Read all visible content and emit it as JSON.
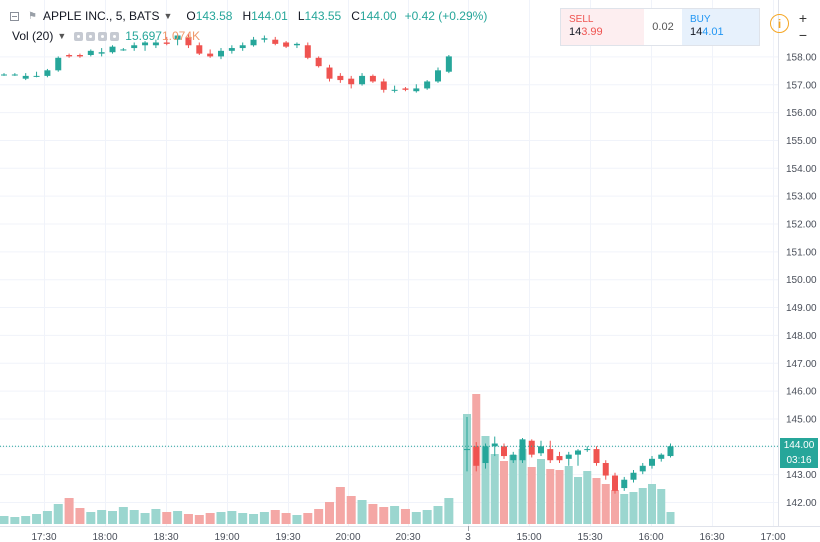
{
  "header": {
    "symbol": "APPLE INC., 5, BATS",
    "o_label": "O",
    "o_value": "143.58",
    "h_label": "H",
    "h_value": "144.01",
    "l_label": "L",
    "l_value": "143.55",
    "c_label": "C",
    "c_value": "144.00",
    "change": "+0.42 (+0.29%)"
  },
  "volume_legend": {
    "title": "Vol (20)",
    "value1": "15.697",
    "value2": "1.074K"
  },
  "trade_panel": {
    "sell_label": "SELL",
    "sell_price_prefix": "14",
    "sell_price_suffix": "3.99",
    "spread": "0.02",
    "buy_label": "BUY",
    "buy_price_prefix": "14",
    "buy_price_suffix": "4.01"
  },
  "controls": {
    "zoom_in": "+",
    "zoom_out": "−",
    "info": "i"
  },
  "price_tags": {
    "last_price": "144.00",
    "countdown": "03:16"
  },
  "colors": {
    "up": "#26a69a",
    "down": "#ef5350",
    "up_volume": "#9bd6cf",
    "down_volume": "#f4a7a5",
    "grid": "#f0f3fa",
    "last_price_line": "#26a69a"
  },
  "chart_data": {
    "type": "candlestick",
    "y_ticks": [
      142,
      143,
      144,
      145,
      146,
      147,
      148,
      149,
      150,
      151,
      152,
      153,
      154,
      155,
      156,
      157,
      158
    ],
    "y_tick_labels": [
      "142.00",
      "143.00",
      "144.00",
      "145.00",
      "146.00",
      "147.00",
      "148.00",
      "149.00",
      "150.00",
      "151.00",
      "152.00",
      "153.00",
      "154.00",
      "155.00",
      "156.00",
      "157.00",
      "158.00"
    ],
    "x_tick_labels": [
      "17:30",
      "18:00",
      "18:30",
      "19:00",
      "19:30",
      "20:00",
      "20:30",
      "3",
      "15:00",
      "15:30",
      "16:00",
      "16:30",
      "17:00"
    ],
    "ylim": [
      141.5,
      158.2
    ],
    "last_price": 144.0,
    "session1_candles": [
      {
        "o": 157.35,
        "h": 157.4,
        "l": 157.3,
        "c": 157.35
      },
      {
        "o": 157.35,
        "h": 157.4,
        "l": 157.3,
        "c": 157.35
      },
      {
        "o": 157.2,
        "h": 157.4,
        "l": 157.15,
        "c": 157.3
      },
      {
        "o": 157.3,
        "h": 157.45,
        "l": 157.25,
        "c": 157.3
      },
      {
        "o": 157.3,
        "h": 157.55,
        "l": 157.25,
        "c": 157.5
      },
      {
        "o": 157.5,
        "h": 158.0,
        "l": 157.45,
        "c": 157.95
      },
      {
        "o": 158.05,
        "h": 158.1,
        "l": 157.95,
        "c": 158.0
      },
      {
        "o": 158.05,
        "h": 158.1,
        "l": 157.95,
        "c": 158.0
      },
      {
        "o": 158.05,
        "h": 158.25,
        "l": 158.0,
        "c": 158.2
      },
      {
        "o": 158.1,
        "h": 158.3,
        "l": 158.0,
        "c": 158.15
      },
      {
        "o": 158.15,
        "h": 158.4,
        "l": 158.1,
        "c": 158.35
      },
      {
        "o": 158.25,
        "h": 158.3,
        "l": 158.2,
        "c": 158.25
      },
      {
        "o": 158.3,
        "h": 158.5,
        "l": 158.2,
        "c": 158.4
      },
      {
        "o": 158.4,
        "h": 158.55,
        "l": 158.2,
        "c": 158.5
      },
      {
        "o": 158.4,
        "h": 158.6,
        "l": 158.3,
        "c": 158.5
      },
      {
        "o": 158.5,
        "h": 158.7,
        "l": 158.4,
        "c": 158.45
      },
      {
        "o": 158.6,
        "h": 158.8,
        "l": 158.4,
        "c": 158.75
      },
      {
        "o": 158.7,
        "h": 158.8,
        "l": 158.3,
        "c": 158.4
      },
      {
        "o": 158.4,
        "h": 158.5,
        "l": 158.05,
        "c": 158.1
      },
      {
        "o": 158.1,
        "h": 158.25,
        "l": 157.95,
        "c": 158.0
      },
      {
        "o": 158.0,
        "h": 158.3,
        "l": 157.9,
        "c": 158.2
      },
      {
        "o": 158.2,
        "h": 158.4,
        "l": 158.1,
        "c": 158.3
      },
      {
        "o": 158.3,
        "h": 158.5,
        "l": 158.2,
        "c": 158.4
      },
      {
        "o": 158.4,
        "h": 158.7,
        "l": 158.35,
        "c": 158.6
      },
      {
        "o": 158.6,
        "h": 158.75,
        "l": 158.5,
        "c": 158.65
      },
      {
        "o": 158.6,
        "h": 158.7,
        "l": 158.4,
        "c": 158.45
      },
      {
        "o": 158.5,
        "h": 158.55,
        "l": 158.3,
        "c": 158.35
      },
      {
        "o": 158.4,
        "h": 158.5,
        "l": 158.3,
        "c": 158.45
      },
      {
        "o": 158.4,
        "h": 158.5,
        "l": 157.9,
        "c": 157.95
      },
      {
        "o": 157.95,
        "h": 158.0,
        "l": 157.6,
        "c": 157.65
      },
      {
        "o": 157.6,
        "h": 157.7,
        "l": 157.1,
        "c": 157.2
      },
      {
        "o": 157.3,
        "h": 157.4,
        "l": 157.05,
        "c": 157.15
      },
      {
        "o": 157.2,
        "h": 157.3,
        "l": 156.85,
        "c": 157.0
      },
      {
        "o": 157.0,
        "h": 157.4,
        "l": 156.95,
        "c": 157.3
      },
      {
        "o": 157.3,
        "h": 157.35,
        "l": 157.05,
        "c": 157.1
      },
      {
        "o": 157.1,
        "h": 157.2,
        "l": 156.7,
        "c": 156.8
      },
      {
        "o": 156.8,
        "h": 156.95,
        "l": 156.7,
        "c": 156.8
      },
      {
        "o": 156.85,
        "h": 156.9,
        "l": 156.75,
        "c": 156.8
      },
      {
        "o": 156.75,
        "h": 157.0,
        "l": 156.7,
        "c": 156.85
      },
      {
        "o": 156.85,
        "h": 157.15,
        "l": 156.8,
        "c": 157.1
      },
      {
        "o": 157.1,
        "h": 157.6,
        "l": 157.05,
        "c": 157.5
      },
      {
        "o": 157.45,
        "h": 158.05,
        "l": 157.4,
        "c": 158.0
      }
    ],
    "session2_candles": [
      {
        "o": 143.9,
        "h": 145.05,
        "l": 143.1,
        "c": 143.9
      },
      {
        "o": 144.0,
        "h": 144.15,
        "l": 143.1,
        "c": 143.3
      },
      {
        "o": 143.4,
        "h": 144.1,
        "l": 143.2,
        "c": 144.0
      },
      {
        "o": 144.0,
        "h": 144.35,
        "l": 143.65,
        "c": 144.1
      },
      {
        "o": 144.0,
        "h": 144.1,
        "l": 143.55,
        "c": 143.65
      },
      {
        "o": 143.5,
        "h": 143.8,
        "l": 143.4,
        "c": 143.7
      },
      {
        "o": 143.5,
        "h": 144.3,
        "l": 143.4,
        "c": 144.25
      },
      {
        "o": 144.2,
        "h": 144.25,
        "l": 143.6,
        "c": 143.7
      },
      {
        "o": 143.75,
        "h": 144.2,
        "l": 143.65,
        "c": 144.0
      },
      {
        "o": 143.9,
        "h": 144.2,
        "l": 143.4,
        "c": 143.5
      },
      {
        "o": 143.65,
        "h": 143.8,
        "l": 143.4,
        "c": 143.5
      },
      {
        "o": 143.55,
        "h": 143.8,
        "l": 143.3,
        "c": 143.7
      },
      {
        "o": 143.7,
        "h": 143.9,
        "l": 143.3,
        "c": 143.85
      },
      {
        "o": 143.9,
        "h": 144.0,
        "l": 143.8,
        "c": 143.9
      },
      {
        "o": 143.9,
        "h": 144.0,
        "l": 143.3,
        "c": 143.4
      },
      {
        "o": 143.4,
        "h": 143.5,
        "l": 142.8,
        "c": 142.95
      },
      {
        "o": 142.95,
        "h": 143.05,
        "l": 142.3,
        "c": 142.4
      },
      {
        "o": 142.5,
        "h": 142.9,
        "l": 142.4,
        "c": 142.8
      },
      {
        "o": 142.8,
        "h": 143.15,
        "l": 142.7,
        "c": 143.05
      },
      {
        "o": 143.1,
        "h": 143.4,
        "l": 143.0,
        "c": 143.3
      },
      {
        "o": 143.3,
        "h": 143.65,
        "l": 143.2,
        "c": 143.55
      },
      {
        "o": 143.55,
        "h": 143.75,
        "l": 143.45,
        "c": 143.7
      },
      {
        "o": 143.65,
        "h": 144.1,
        "l": 143.6,
        "c": 144.0
      }
    ],
    "session1_volume": [
      8,
      7,
      8,
      10,
      13,
      20,
      26,
      16,
      12,
      14,
      13,
      17,
      14,
      11,
      15,
      12,
      13,
      10,
      9,
      11,
      12,
      13,
      11,
      10,
      12,
      14,
      11,
      9,
      11,
      15,
      22,
      37,
      28,
      24,
      20,
      17,
      18,
      15,
      12,
      14,
      18,
      26
    ],
    "session2_volume": [
      110,
      130,
      88,
      70,
      63,
      69,
      75,
      57,
      65,
      55,
      54,
      58,
      47,
      53,
      46,
      40,
      34,
      30,
      32,
      36,
      40,
      35,
      12
    ]
  }
}
